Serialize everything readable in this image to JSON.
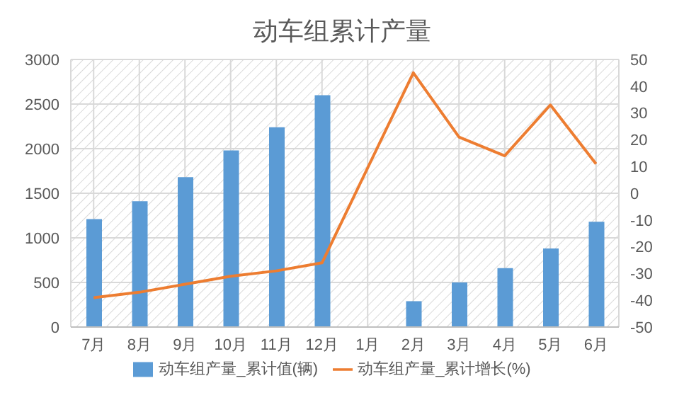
{
  "chart_data": {
    "type": "bar",
    "title": "动车组累计产量",
    "categories": [
      "7月",
      "8月",
      "9月",
      "10月",
      "11月",
      "12月",
      "1月",
      "2月",
      "3月",
      "4月",
      "5月",
      "6月"
    ],
    "series": [
      {
        "name": "动车组产量_累计值(辆)",
        "color": "#5b9bd5",
        "values": [
          1210,
          1410,
          1680,
          1980,
          2240,
          2600,
          null,
          290,
          500,
          660,
          880,
          1180
        ]
      },
      {
        "name": "动车组产量_累计增长(%)",
        "type": "line",
        "axis": "y2",
        "color": "#ed7d31",
        "values": [
          -39,
          -37,
          -34,
          -31,
          -29,
          -26,
          null,
          45,
          21,
          14,
          33,
          11
        ]
      }
    ],
    "ylim": [
      0,
      3000
    ],
    "yticks": [
      0,
      500,
      1000,
      1500,
      2000,
      2500,
      3000
    ],
    "y2lim": [
      -50,
      50
    ],
    "y2ticks": [
      -50,
      -40,
      -30,
      -20,
      -10,
      0,
      10,
      20,
      30,
      40,
      50
    ],
    "grid": true,
    "legend": "bottom",
    "marker": "none"
  }
}
